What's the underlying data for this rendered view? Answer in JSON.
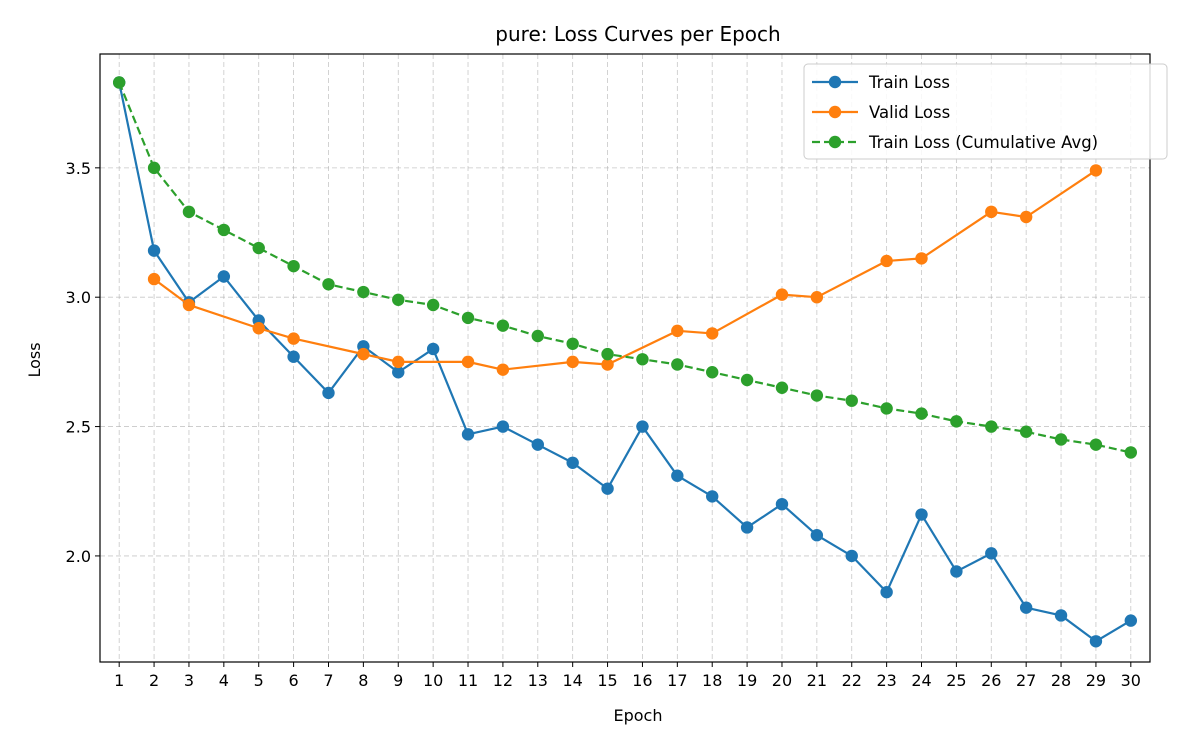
{
  "chart_data": {
    "type": "line",
    "title": "pure: Loss Curves per Epoch",
    "xlabel": "Epoch",
    "ylabel": "Loss",
    "xlim": [
      0.45,
      30.55
    ],
    "ylim": [
      1.59,
      3.94
    ],
    "x_ticks": [
      1,
      2,
      3,
      4,
      5,
      6,
      7,
      8,
      9,
      10,
      11,
      12,
      13,
      14,
      15,
      16,
      17,
      18,
      19,
      20,
      21,
      22,
      23,
      24,
      25,
      26,
      27,
      28,
      29,
      30
    ],
    "y_ticks": [
      2.0,
      2.5,
      3.0,
      3.5
    ],
    "y_tick_labels": [
      "2.0",
      "2.5",
      "3.0",
      "3.5"
    ],
    "grid": true,
    "legend_position": "top-right",
    "series": [
      {
        "name": "Train Loss",
        "color": "#1f77b4",
        "style": "solid",
        "x": [
          1,
          2,
          3,
          4,
          5,
          6,
          7,
          8,
          9,
          10,
          11,
          12,
          13,
          14,
          15,
          16,
          17,
          18,
          19,
          20,
          21,
          22,
          23,
          24,
          25,
          26,
          27,
          28,
          29,
          30
        ],
        "values": [
          3.83,
          3.18,
          2.98,
          3.08,
          2.91,
          2.77,
          2.63,
          2.81,
          2.71,
          2.8,
          2.47,
          2.5,
          2.43,
          2.36,
          2.26,
          2.5,
          2.31,
          2.23,
          2.11,
          2.2,
          2.08,
          2.0,
          1.86,
          2.16,
          1.94,
          2.01,
          1.8,
          1.77,
          1.67,
          1.75
        ]
      },
      {
        "name": "Valid Loss",
        "color": "#ff7f0e",
        "style": "solid",
        "x": [
          2,
          3,
          5,
          6,
          8,
          9,
          11,
          12,
          14,
          15,
          17,
          18,
          20,
          21,
          23,
          24,
          26,
          27,
          29
        ],
        "values": [
          3.07,
          2.97,
          2.88,
          2.84,
          2.78,
          2.75,
          2.75,
          2.72,
          2.75,
          2.74,
          2.87,
          2.86,
          3.01,
          3.0,
          3.14,
          3.15,
          3.33,
          3.31,
          3.49
        ]
      },
      {
        "name": "Train Loss (Cumulative Avg)",
        "color": "#2ca02c",
        "style": "dashed",
        "x": [
          1,
          2,
          3,
          4,
          5,
          6,
          7,
          8,
          9,
          10,
          11,
          12,
          13,
          14,
          15,
          16,
          17,
          18,
          19,
          20,
          21,
          22,
          23,
          24,
          25,
          26,
          27,
          28,
          29,
          30
        ],
        "values": [
          3.83,
          3.5,
          3.33,
          3.26,
          3.19,
          3.12,
          3.05,
          3.02,
          2.99,
          2.97,
          2.92,
          2.89,
          2.85,
          2.82,
          2.78,
          2.76,
          2.74,
          2.71,
          2.68,
          2.65,
          2.62,
          2.6,
          2.57,
          2.55,
          2.52,
          2.5,
          2.48,
          2.45,
          2.43,
          2.4
        ]
      }
    ]
  }
}
